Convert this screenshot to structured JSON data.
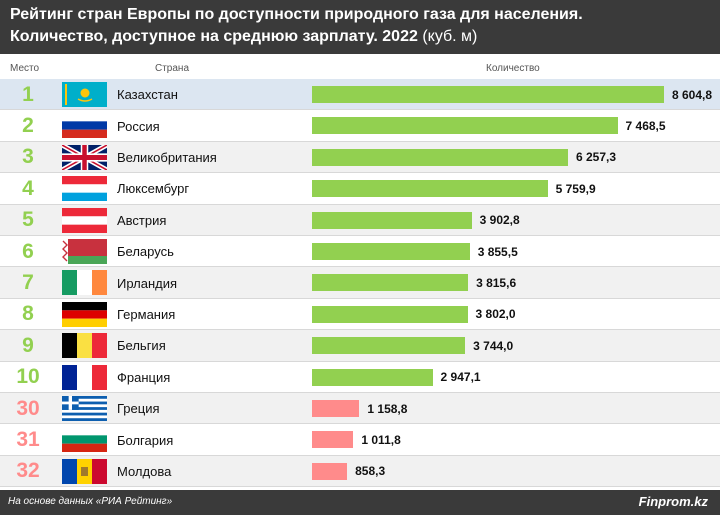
{
  "title_line1": "Рейтинг стран Европы по доступности природного газа для населения.",
  "title_line2_main": "Количество, доступное на среднюю зарплату. 2022",
  "title_line2_unit": "(куб. м)",
  "columns": {
    "rank": "Место",
    "country": "Страна",
    "amount": "Количество"
  },
  "colors": {
    "top": "#92d050",
    "bottom": "#ff8b8b",
    "rank_top": "#92d050",
    "rank_bottom": "#ff8b8b"
  },
  "chart_data": {
    "type": "bar",
    "orientation": "horizontal",
    "title": "Рейтинг стран Европы по доступности природного газа для населения. Количество, доступное на среднюю зарплату. 2022 (куб. м)",
    "xlabel": "Количество",
    "ylabel": "Страна",
    "categories": [
      "Казахстан",
      "Россия",
      "Великобритания",
      "Люксембург",
      "Австрия",
      "Беларусь",
      "Ирландия",
      "Германия",
      "Бельгия",
      "Франция",
      "Греция",
      "Болгария",
      "Молдова"
    ],
    "ranks": [
      "1",
      "2",
      "3",
      "4",
      "5",
      "6",
      "7",
      "8",
      "9",
      "10",
      "30",
      "31",
      "32"
    ],
    "values": [
      8604.8,
      7468.5,
      6257.3,
      5759.9,
      3902.8,
      3855.5,
      3815.6,
      3802.0,
      3744.0,
      2947.1,
      1158.8,
      1011.8,
      858.3
    ],
    "value_labels": [
      "8 604,8",
      "7 468,5",
      "6 257,3",
      "5 759,9",
      "3 902,8",
      "3 855,5",
      "3 815,6",
      "3 802,0",
      "3 744,0",
      "2 947,1",
      "1 158,8",
      "1 011,8",
      "858,3"
    ],
    "groups": [
      "top",
      "top",
      "top",
      "top",
      "top",
      "top",
      "top",
      "top",
      "top",
      "top",
      "bottom",
      "bottom",
      "bottom"
    ],
    "flags": [
      "kazakhstan-flag",
      "russia-flag",
      "uk-flag",
      "luxembourg-flag",
      "austria-flag",
      "belarus-flag",
      "ireland-flag",
      "germany-flag",
      "belgium-flag",
      "france-flag",
      "greece-flag",
      "bulgaria-flag",
      "moldova-flag"
    ]
  },
  "footer": {
    "source": "На основе данных «РИА Рейтинг»",
    "brand": "Finprom.kz"
  }
}
